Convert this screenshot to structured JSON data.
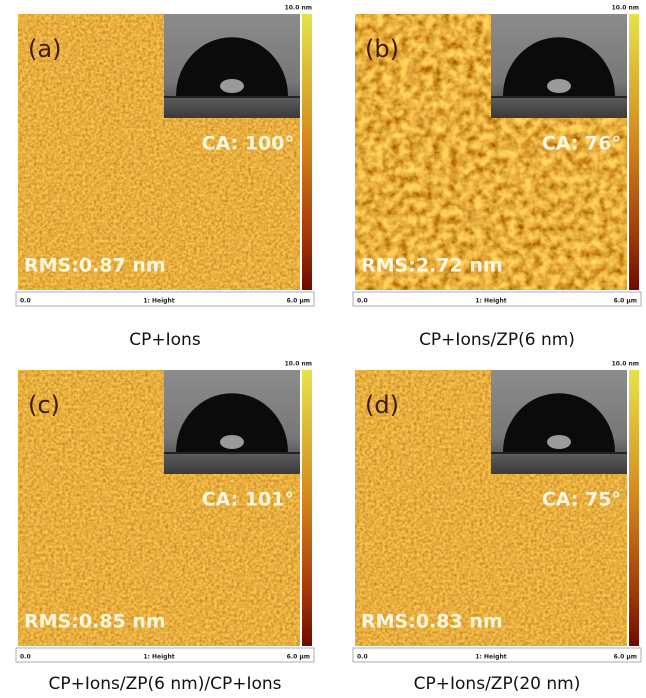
{
  "panels": [
    {
      "label": "(a)",
      "ca": "CA: 100°",
      "rms": "RMS:0.87 nm",
      "scale_top": "10.0 nm",
      "axis_left": "0.0",
      "axis_mid": "1: Height",
      "axis_right": "6.0 µm",
      "caption": "CP+Ions"
    },
    {
      "label": "(b)",
      "ca": "CA: 76°",
      "rms": "RMS:2.72 nm",
      "scale_top": "10.0 nm",
      "axis_left": "0.0",
      "axis_mid": "1: Height",
      "axis_right": "6.0 µm",
      "caption": "CP+Ions/ZP(6 nm)"
    },
    {
      "label": "(c)",
      "ca": "CA: 101°",
      "rms": "RMS:0.85 nm",
      "scale_top": "10.0 nm",
      "axis_left": "0.0",
      "axis_mid": "1: Height",
      "axis_right": "6.0 µm",
      "caption": "CP+Ions/ZP(6 nm)/CP+Ions"
    },
    {
      "label": "(d)",
      "ca": "CA: 75°",
      "rms": "RMS:0.83 nm",
      "scale_top": "10.0 nm",
      "axis_left": "0.0",
      "axis_mid": "1: Height",
      "axis_right": "6.0 µm",
      "caption": "CP+Ions/ZP(20 nm)"
    }
  ]
}
